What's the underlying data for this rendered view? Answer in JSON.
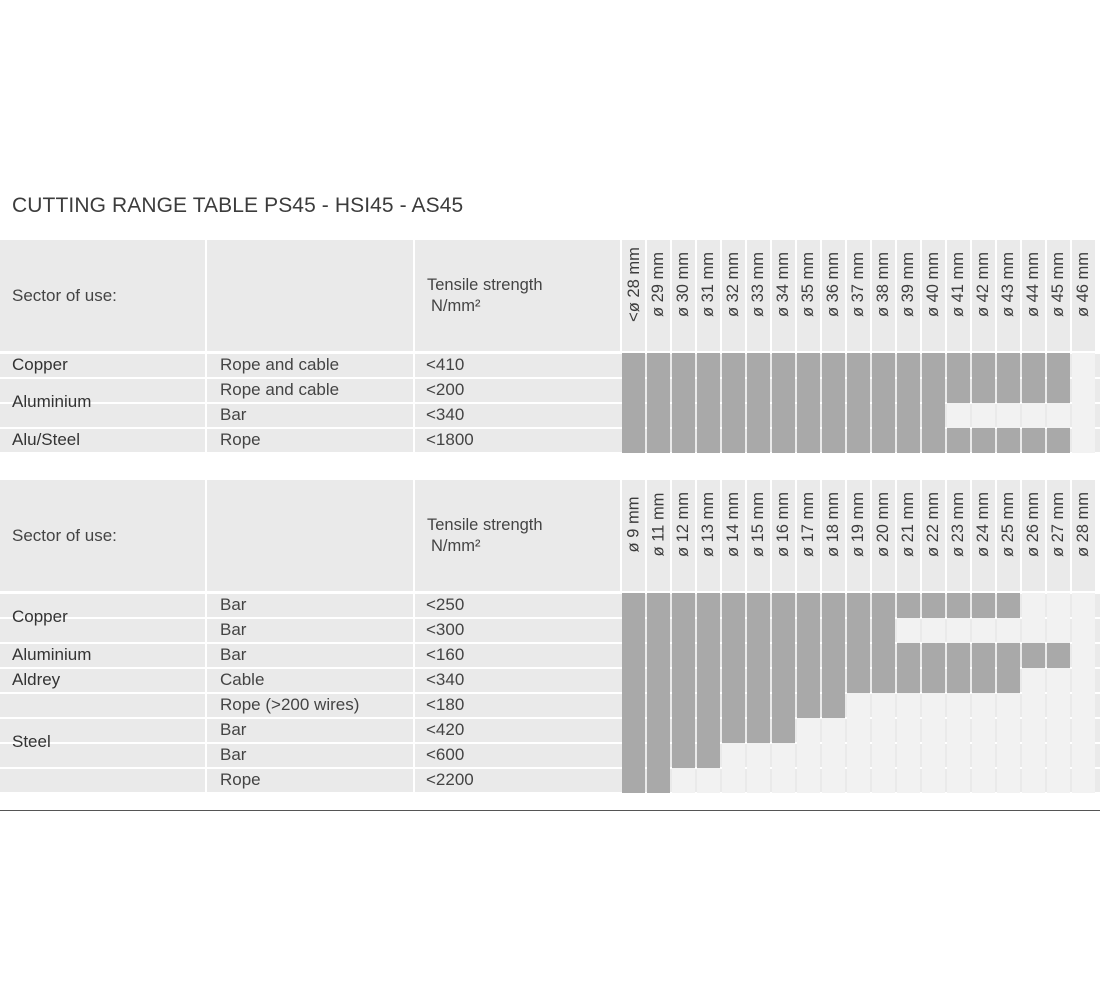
{
  "title": "CUTTING RANGE TABLE PS45 - HSI45 - AS45",
  "colors": {
    "band": "#eaeaea",
    "filled": "#a9a9a9",
    "empty": "#f2f2f2",
    "separator": "#ffffff"
  },
  "tables": [
    {
      "sector_header": "Sector of use:",
      "tensile_header_line1": "Tensile strength",
      "tensile_header_line2": "N/mm²",
      "diameters": [
        "<ø 28 mm",
        "ø 29 mm",
        "ø 30 mm",
        "ø 31 mm",
        "ø 32 mm",
        "ø 33 mm",
        "ø 34 mm",
        "ø 35 mm",
        "ø 36 mm",
        "ø 37 mm",
        "ø 38 mm",
        "ø 39 mm",
        "ø 40 mm",
        "ø 41 mm",
        "ø 42 mm",
        "ø 43 mm",
        "ø 44 mm",
        "ø 45 mm",
        "ø 46 mm"
      ],
      "sectors": [
        {
          "name": "Copper",
          "rows": [
            {
              "material": "Rope and cable",
              "tensile": "<410",
              "filled": 18
            }
          ]
        },
        {
          "name": "Aluminium",
          "rows": [
            {
              "material": "Rope and cable",
              "tensile": "<200",
              "filled": 18
            },
            {
              "material": "Bar",
              "tensile": "<340",
              "filled": 13
            }
          ]
        },
        {
          "name": "Alu/Steel",
          "rows": [
            {
              "material": "Rope",
              "tensile": "<1800",
              "filled": 18
            }
          ]
        }
      ]
    },
    {
      "sector_header": "Sector of use:",
      "tensile_header_line1": "Tensile strength",
      "tensile_header_line2": "N/mm²",
      "diameters": [
        "ø 9 mm",
        "ø 11 mm",
        "ø 12 mm",
        "ø 13 mm",
        "ø 14 mm",
        "ø 15 mm",
        "ø 16 mm",
        "ø 17 mm",
        "ø 18 mm",
        "ø 19 mm",
        "ø 20 mm",
        "ø 21 mm",
        "ø 22 mm",
        "ø 23 mm",
        "ø 24 mm",
        "ø 25 mm",
        "ø 26 mm",
        "ø 27 mm",
        "ø 28 mm"
      ],
      "sectors": [
        {
          "name": "Copper",
          "rows": [
            {
              "material": "Bar",
              "tensile": "<250",
              "filled": 16
            },
            {
              "material": "Bar",
              "tensile": "<300",
              "filled": 11
            }
          ]
        },
        {
          "name": "Aluminium",
          "rows": [
            {
              "material": "Bar",
              "tensile": "<160",
              "filled": 18
            }
          ]
        },
        {
          "name": "Aldrey",
          "rows": [
            {
              "material": "Cable",
              "tensile": "<340",
              "filled": 16
            }
          ]
        },
        {
          "name": "Steel",
          "rows": [
            {
              "material": "Rope (>200 wires)",
              "tensile": "<180",
              "filled": 9
            },
            {
              "material": "Bar",
              "tensile": "<420",
              "filled": 7
            },
            {
              "material": "Bar",
              "tensile": "<600",
              "filled": 4
            },
            {
              "material": "Rope",
              "tensile": "<2200",
              "filled": 2
            }
          ]
        }
      ]
    }
  ]
}
